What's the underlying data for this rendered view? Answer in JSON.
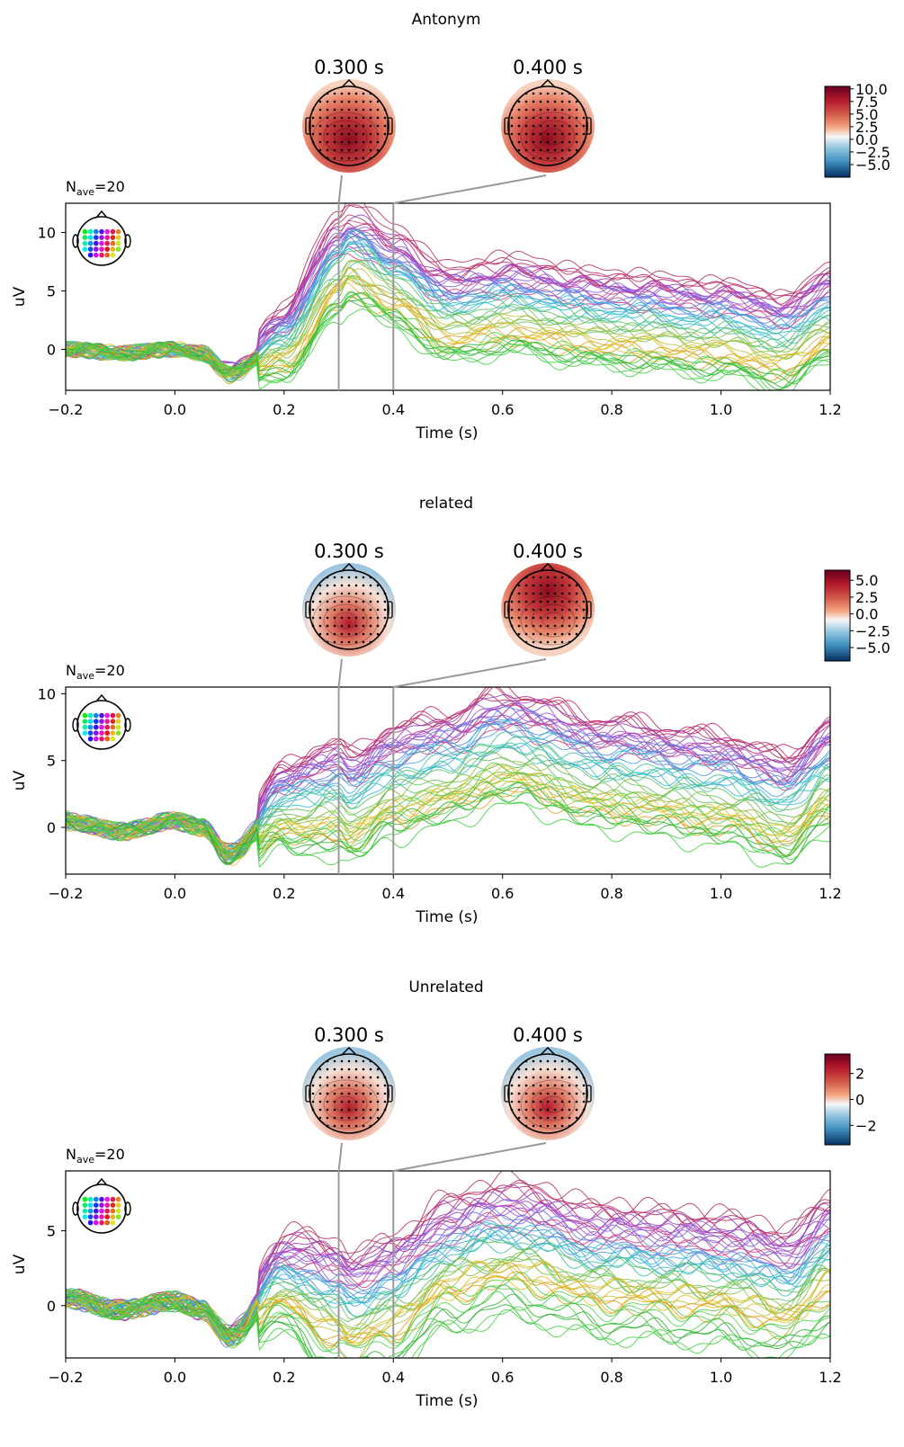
{
  "chart_data": [
    {
      "type": "line",
      "title": "Antonym",
      "nave_label": "N",
      "nave_sub": "ave",
      "nave_value": "=20",
      "xlabel": "Time (s)",
      "ylabel": "uV",
      "xlim": [
        -0.2,
        1.2
      ],
      "ylim": [
        -3.5,
        12.5
      ],
      "xticks": [
        -0.2,
        0.0,
        0.2,
        0.4,
        0.6,
        0.8,
        1.0,
        1.2
      ],
      "xtick_labels": [
        "−0.2",
        "0.0",
        "0.2",
        "0.4",
        "0.6",
        "0.8",
        "1.0",
        "1.2"
      ],
      "yticks": [
        0,
        5,
        10
      ],
      "ytick_labels": [
        "0",
        "5",
        "10"
      ],
      "grid": false,
      "topomap_times": [
        0.3,
        0.4
      ],
      "topomap_labels": [
        "0.300 s",
        "0.400 s"
      ],
      "colorbar": {
        "ticks": [
          10.0,
          7.5,
          5.0,
          2.5,
          0.0,
          -2.5,
          -5.0
        ],
        "labels": [
          "10.0",
          "7.5",
          "5.0",
          "2.5",
          "0.0",
          "−2.5",
          "−5.0"
        ],
        "range": [
          -7.5,
          10.5
        ]
      },
      "key_x": [
        -0.2,
        -0.1,
        0.0,
        0.05,
        0.1,
        0.2,
        0.3,
        0.32,
        0.4,
        0.5,
        0.6,
        0.8,
        1.0,
        1.12,
        1.2
      ],
      "mean_trace": [
        0.0,
        -0.3,
        0.0,
        -0.3,
        -2.0,
        1.0,
        7.5,
        8.5,
        6.5,
        3.5,
        4.2,
        3.0,
        2.3,
        1.2,
        3.5
      ],
      "channel_offsets": [
        3.0,
        3.0,
        2.5,
        2.2,
        2.0,
        1.5,
        1.0,
        0.5,
        0.0,
        -0.5,
        -1.0,
        -1.5,
        -2.0,
        -2.5,
        -3.0,
        -3.5,
        -4.0,
        -4.5
      ],
      "colors": {
        "topo_pos": "#b2182b",
        "topo_neg": "#2166ac",
        "axes": "#000000",
        "marker_line": "#999999"
      }
    },
    {
      "type": "line",
      "title": "related",
      "nave_label": "N",
      "nave_sub": "ave",
      "nave_value": "=20",
      "xlabel": "Time (s)",
      "ylabel": "uV",
      "xlim": [
        -0.2,
        1.2
      ],
      "ylim": [
        -3.5,
        10.5
      ],
      "xticks": [
        -0.2,
        0.0,
        0.2,
        0.4,
        0.6,
        0.8,
        1.0,
        1.2
      ],
      "xtick_labels": [
        "−0.2",
        "0.0",
        "0.2",
        "0.4",
        "0.6",
        "0.8",
        "1.0",
        "1.2"
      ],
      "yticks": [
        0,
        5,
        10
      ],
      "ytick_labels": [
        "0",
        "5",
        "10"
      ],
      "grid": false,
      "topomap_times": [
        0.3,
        0.4
      ],
      "topomap_labels": [
        "0.300 s",
        "0.400 s"
      ],
      "colorbar": {
        "ticks": [
          5.0,
          2.5,
          0.0,
          -2.5,
          -5.0
        ],
        "labels": [
          "5.0",
          "2.5",
          "0.0",
          "−2.5",
          "−5.0"
        ],
        "range": [
          -7.0,
          6.5
        ]
      },
      "key_x": [
        -0.2,
        -0.1,
        0.0,
        0.05,
        0.1,
        0.2,
        0.3,
        0.32,
        0.4,
        0.5,
        0.6,
        0.8,
        1.0,
        1.12,
        1.2
      ],
      "mean_trace": [
        0.5,
        -0.3,
        0.5,
        0.0,
        -2.0,
        2.0,
        2.8,
        2.2,
        4.0,
        5.0,
        6.5,
        4.5,
        3.5,
        2.0,
        4.5
      ],
      "channel_offsets": [
        3.0,
        3.0,
        2.5,
        2.2,
        2.0,
        1.5,
        1.0,
        0.5,
        0.0,
        -0.5,
        -1.0,
        -1.5,
        -2.0,
        -2.5,
        -3.0,
        -3.5,
        -4.0,
        -4.5
      ],
      "colors": {
        "topo_pos": "#b2182b",
        "topo_neg": "#2166ac",
        "axes": "#000000",
        "marker_line": "#999999"
      }
    },
    {
      "type": "line",
      "title": "Unrelated",
      "nave_label": "N",
      "nave_sub": "ave",
      "nave_value": "=20",
      "xlabel": "Time (s)",
      "ylabel": "uV",
      "xlim": [
        -0.2,
        1.2
      ],
      "ylim": [
        -3.5,
        9.0
      ],
      "xticks": [
        -0.2,
        0.0,
        0.2,
        0.4,
        0.6,
        0.8,
        1.0,
        1.2
      ],
      "xtick_labels": [
        "−0.2",
        "0.0",
        "0.2",
        "0.4",
        "0.6",
        "0.8",
        "1.0",
        "1.2"
      ],
      "yticks": [
        0,
        5
      ],
      "ytick_labels": [
        "0",
        "5"
      ],
      "grid": false,
      "topomap_times": [
        0.3,
        0.4
      ],
      "topomap_labels": [
        "0.300 s",
        "0.400 s"
      ],
      "colorbar": {
        "ticks": [
          2,
          0,
          -2
        ],
        "labels": [
          "2",
          "0",
          "−2"
        ],
        "range": [
          -3.5,
          3.5
        ]
      },
      "key_x": [
        -0.2,
        -0.1,
        0.0,
        0.05,
        0.1,
        0.2,
        0.3,
        0.32,
        0.4,
        0.5,
        0.6,
        0.8,
        1.0,
        1.12,
        1.2
      ],
      "mean_trace": [
        0.5,
        -0.3,
        0.3,
        -0.3,
        -2.0,
        2.0,
        0.5,
        0.0,
        1.0,
        3.5,
        4.5,
        3.0,
        2.5,
        1.5,
        3.5
      ],
      "channel_offsets": [
        3.0,
        3.0,
        2.5,
        2.2,
        2.0,
        1.5,
        1.0,
        0.5,
        0.0,
        -0.5,
        -1.0,
        -1.5,
        -2.0,
        -2.5,
        -3.0,
        -3.5,
        -4.0,
        -4.5
      ],
      "colors": {
        "topo_pos": "#b2182b",
        "topo_neg": "#2166ac",
        "axes": "#000000",
        "marker_line": "#999999"
      }
    }
  ]
}
